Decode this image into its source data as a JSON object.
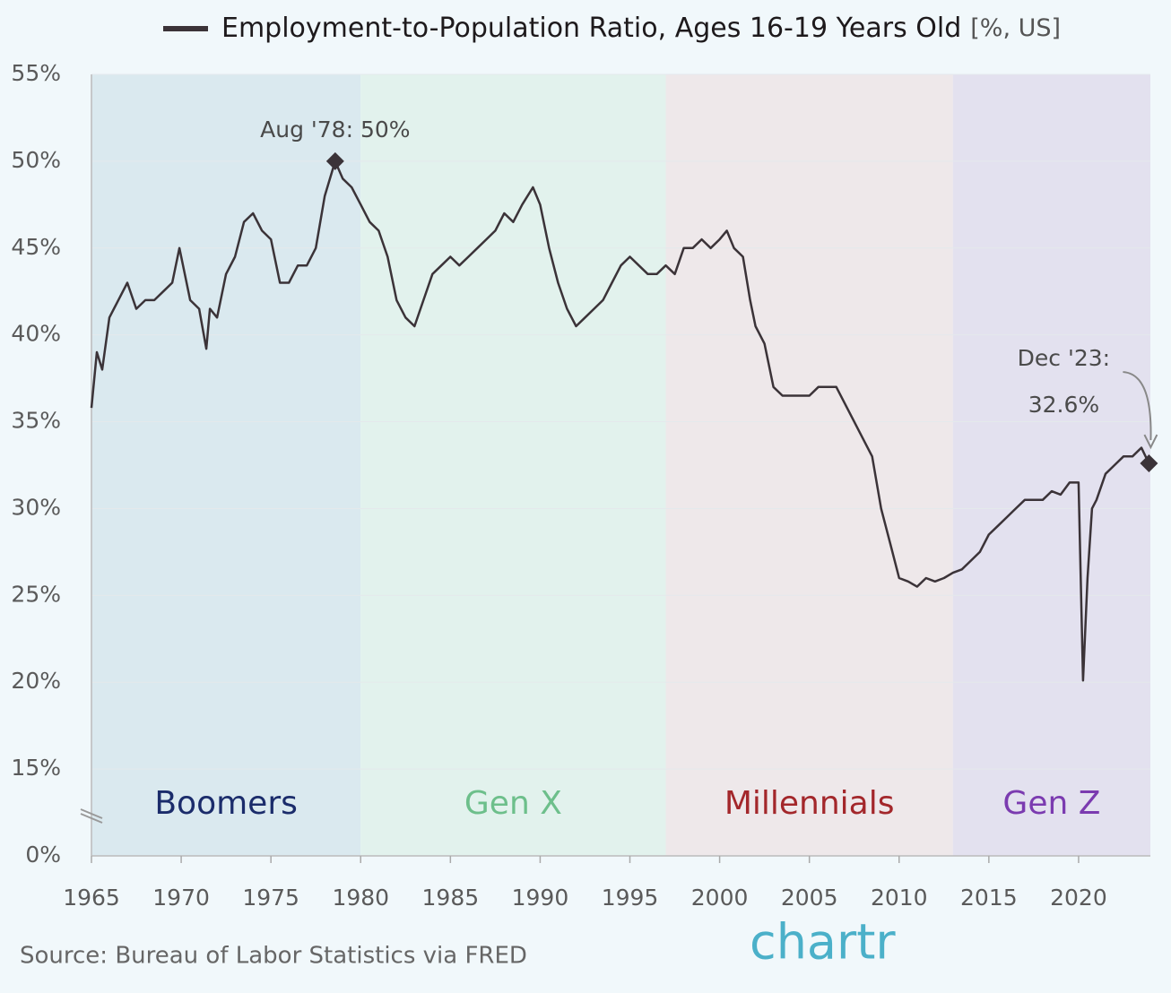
{
  "chart_data": {
    "type": "line",
    "title": "Employment-to-Population Ratio, Ages 16-19 Years Old",
    "units": "[%, US]",
    "source": "Source: Bureau of Labor Statistics via FRED",
    "logo": "chartr",
    "xlim": [
      1965,
      2024
    ],
    "xticks": [
      1965,
      1970,
      1975,
      1980,
      1985,
      1990,
      1995,
      2000,
      2005,
      2010,
      2015,
      2020
    ],
    "ylim": [
      0,
      55
    ],
    "yticks": [
      {
        "value": 0,
        "label": "0%"
      },
      {
        "value": 15,
        "label": "15%"
      },
      {
        "value": 20,
        "label": "20%"
      },
      {
        "value": 25,
        "label": "25%"
      },
      {
        "value": 30,
        "label": "30%"
      },
      {
        "value": 35,
        "label": "35%"
      },
      {
        "value": 40,
        "label": "40%"
      },
      {
        "value": 45,
        "label": "45%"
      },
      {
        "value": 50,
        "label": "50%"
      },
      {
        "value": 55,
        "label": "55%"
      }
    ],
    "grid": true,
    "bands": [
      {
        "name": "Boomers",
        "start": 1965,
        "end": 1980,
        "color": "#dae9ef",
        "label_color": "#1b2c6b"
      },
      {
        "name": "Gen X",
        "start": 1980,
        "end": 1997,
        "color": "#e2f2ed",
        "label_color": "#6dbf8b"
      },
      {
        "name": "Millennials",
        "start": 1997,
        "end": 2013,
        "color": "#eee8ea",
        "label_color": "#a3272b"
      },
      {
        "name": "Gen Z",
        "start": 2013,
        "end": 2024,
        "color": "#e3e1ef",
        "label_color": "#7b3bb0"
      }
    ],
    "x": [
      1965.0,
      1965.3,
      1965.6,
      1966.0,
      1966.5,
      1967.0,
      1967.5,
      1968.0,
      1968.5,
      1969.0,
      1969.5,
      1969.9,
      1970.5,
      1971.0,
      1971.4,
      1971.6,
      1972.0,
      1972.5,
      1973.0,
      1973.5,
      1974.0,
      1974.5,
      1975.0,
      1975.5,
      1976.0,
      1976.5,
      1977.0,
      1977.5,
      1978.0,
      1978.58,
      1979.0,
      1979.5,
      1980.0,
      1980.5,
      1981.0,
      1981.5,
      1982.0,
      1982.5,
      1983.0,
      1983.5,
      1984.0,
      1984.5,
      1985.0,
      1985.5,
      1986.0,
      1986.5,
      1987.0,
      1987.5,
      1988.0,
      1988.5,
      1989.0,
      1989.6,
      1990.0,
      1990.5,
      1991.0,
      1991.5,
      1992.0,
      1992.5,
      1993.0,
      1993.5,
      1994.0,
      1994.5,
      1995.0,
      1995.5,
      1996.0,
      1996.5,
      1997.0,
      1997.5,
      1998.0,
      1998.5,
      1999.0,
      1999.5,
      2000.0,
      2000.4,
      2000.8,
      2001.3,
      2001.7,
      2002.0,
      2002.5,
      2003.0,
      2003.5,
      2004.0,
      2004.5,
      2005.0,
      2005.5,
      2006.0,
      2006.5,
      2007.0,
      2007.5,
      2008.0,
      2008.5,
      2009.0,
      2009.5,
      2010.0,
      2010.5,
      2011.0,
      2011.5,
      2012.0,
      2012.5,
      2013.0,
      2013.5,
      2014.0,
      2014.5,
      2015.0,
      2015.5,
      2016.0,
      2016.5,
      2017.0,
      2017.5,
      2018.0,
      2018.5,
      2019.0,
      2019.5,
      2020.0,
      2020.25,
      2020.5,
      2020.75,
      2021.0,
      2021.5,
      2022.0,
      2022.5,
      2023.0,
      2023.5,
      2023.92
    ],
    "series": [
      {
        "name": "Employment-to-Population Ratio, Ages 16-19 Years Old",
        "color": "#3b3338",
        "values": [
          35.8,
          39,
          38,
          41,
          42,
          43,
          41.5,
          42,
          42,
          42.5,
          43,
          45,
          42,
          41.5,
          39.2,
          41.5,
          41,
          43.5,
          44.5,
          46.5,
          47,
          46,
          45.5,
          43,
          43,
          44,
          44,
          45,
          48,
          50,
          49,
          48.5,
          47.5,
          46.5,
          46,
          44.5,
          42,
          41,
          40.5,
          42,
          43.5,
          44,
          44.5,
          44,
          44.5,
          45,
          45.5,
          46,
          47,
          46.5,
          47.5,
          48.5,
          47.5,
          45,
          43,
          41.5,
          40.5,
          41,
          41.5,
          42,
          43,
          44,
          44.5,
          44,
          43.5,
          43.5,
          44,
          43.5,
          45,
          45,
          45.5,
          45,
          45.5,
          46,
          45,
          44.5,
          42,
          40.5,
          39.5,
          37,
          36.5,
          36.5,
          36.5,
          36.5,
          37,
          37,
          37,
          36,
          35,
          34,
          33,
          30,
          28,
          26,
          25.8,
          25.5,
          26,
          25.8,
          26,
          26.3,
          26.5,
          27,
          27.5,
          28.5,
          29,
          29.5,
          30,
          30.5,
          30.5,
          30.5,
          31,
          30.8,
          31.5,
          31.5,
          20.1,
          26,
          30,
          30.5,
          32,
          32.5,
          33,
          33,
          33.5,
          32.6
        ]
      }
    ],
    "annotations": [
      {
        "label": "Aug '78: 50%",
        "x": 1978.58,
        "y": 50
      },
      {
        "label": "Dec '23:",
        "label2": "32.6%",
        "x": 2023.92,
        "y": 32.6
      }
    ]
  }
}
